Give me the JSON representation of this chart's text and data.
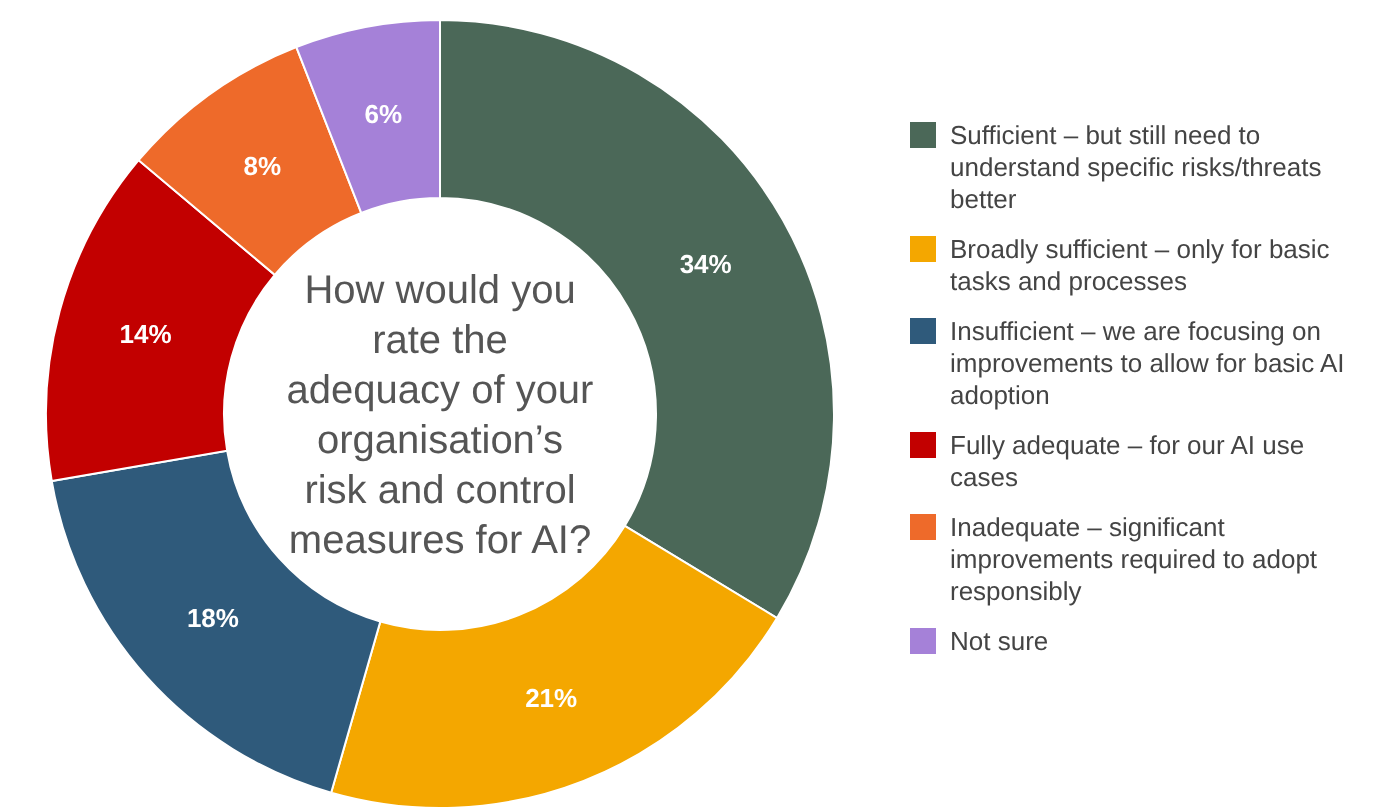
{
  "chart_data": {
    "type": "donut",
    "title": "How would you rate the adequacy of your organisation’s risk and control measures for AI?",
    "categories": [
      "Sufficient – but still need to understand specific risks/threats better",
      "Broadly sufficient – only for basic tasks and processes",
      "Insufficient – we are focusing on improvements to allow for basic AI adoption",
      "Fully adequate – for our AI use cases",
      "Inadequate – significant improvements required to adopt responsibly",
      "Not sure"
    ],
    "values": [
      34,
      21,
      18,
      14,
      8,
      6
    ],
    "colors": [
      "#4b6858",
      "#f4a700",
      "#2f5a7b",
      "#c20000",
      "#ee6a2a",
      "#a581d8"
    ],
    "value_labels": [
      "34%",
      "21%",
      "18%",
      "14%",
      "8%",
      "6%"
    ],
    "legend": "right"
  }
}
